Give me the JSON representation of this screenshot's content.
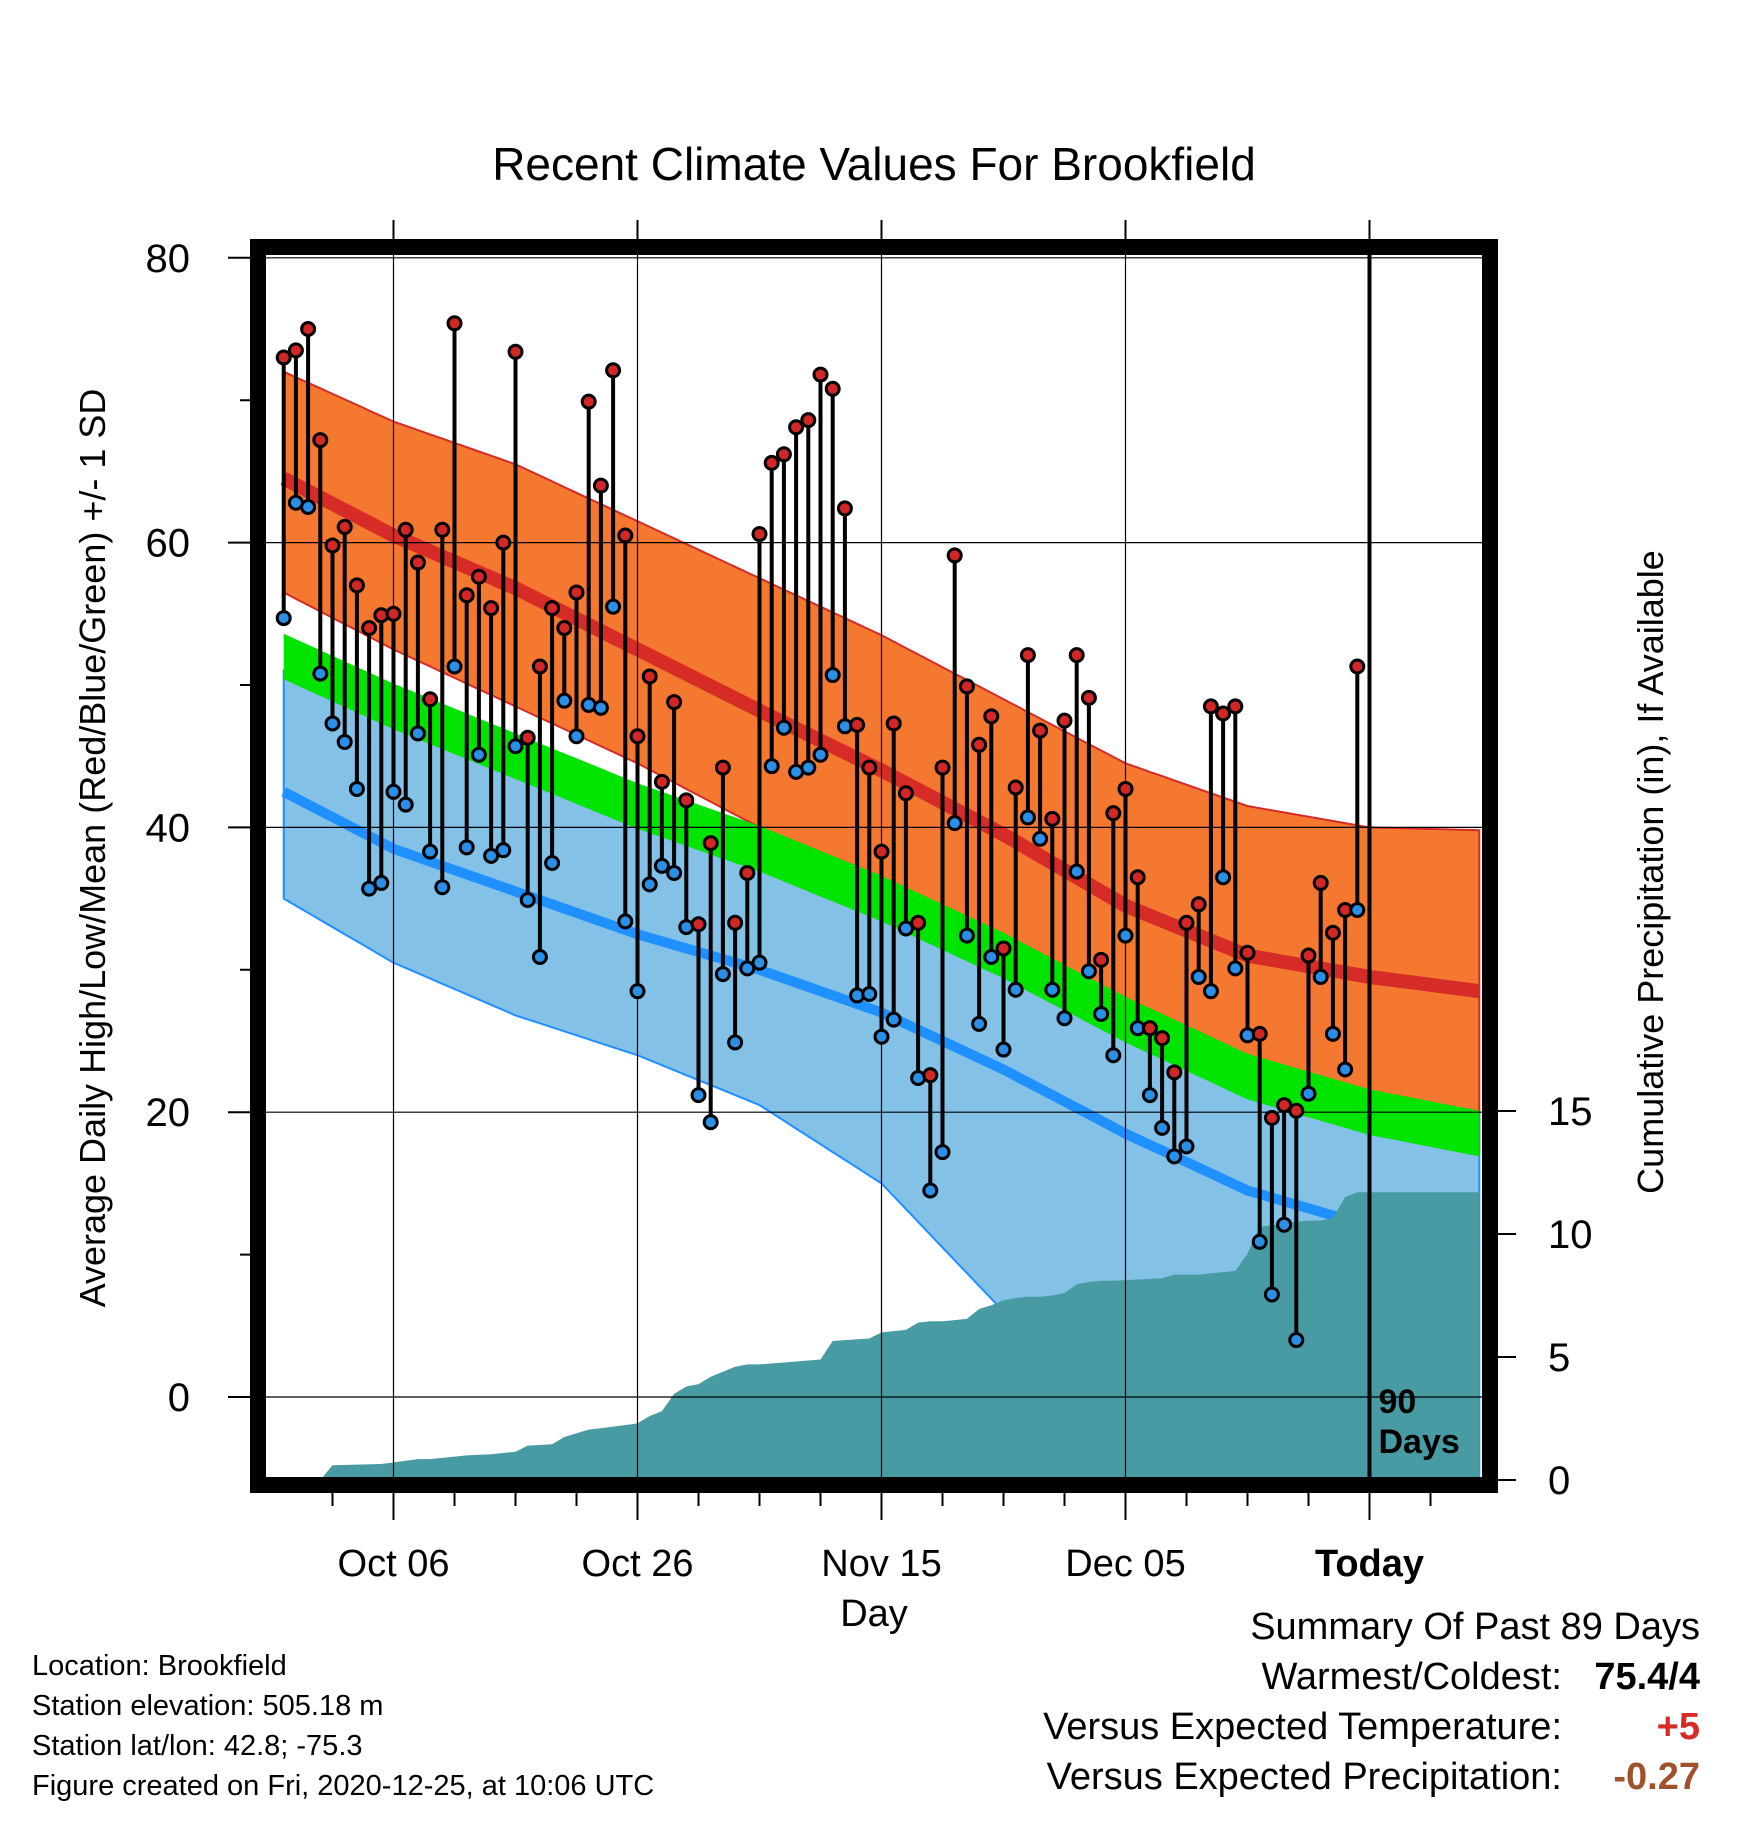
{
  "chart_data": {
    "type": "line",
    "title": "Recent Climate Values For Brookfield",
    "xlabel": "Day",
    "ylabel": "Average Daily High/Low/Mean (Red/Blue/Green) +/- 1 SD",
    "ylabel_right": "Cumulative Precipitation (in), If Available",
    "ylim": [
      -6,
      80
    ],
    "y2lim": [
      0,
      50
    ],
    "xlim_days": [
      -89,
      9
    ],
    "x_tick_labels": [
      "Oct 06",
      "Oct 26",
      "Nov 15",
      "Dec 05",
      "Today"
    ],
    "x_tick_days": [
      -80,
      -60,
      -40,
      -20,
      0
    ],
    "y_ticks": [
      0,
      20,
      40,
      60,
      80
    ],
    "y2_ticks": [
      0,
      5,
      10,
      15
    ],
    "today_label": "90 Days",
    "grid": true,
    "colors": {
      "high_band": "#f4782f",
      "high_line": "#d62b26",
      "low_band": "#84c1e6",
      "low_line": "#1e90ff",
      "mean_band": "#00e400",
      "overlap": "#9b1214",
      "precip": "#489aa3",
      "high_marker": "#d32626",
      "low_marker": "#2a8fe6"
    },
    "normal_days": [
      -89,
      -80,
      -70,
      -60,
      -50,
      -40,
      -30,
      -20,
      -10,
      0,
      9
    ],
    "normal_high_mean": [
      64.5,
      60.5,
      56.8,
      52.5,
      48.2,
      44.0,
      39.5,
      34.5,
      31.0,
      29.5,
      28.5
    ],
    "normal_high_upper": [
      72.0,
      68.5,
      65.5,
      61.5,
      57.5,
      53.5,
      49.0,
      44.5,
      41.5,
      40.0,
      39.8
    ],
    "normal_high_lower": [
      56.5,
      52.5,
      48.5,
      44.5,
      40.0,
      35.5,
      30.5,
      25.5,
      21.5,
      19.0,
      17.3
    ],
    "normal_mean": [
      52.0,
      48.5,
      45.0,
      41.5,
      38.5,
      35.0,
      31.0,
      26.5,
      22.5,
      20.0,
      18.5
    ],
    "normal_mean_band_width": 1.6,
    "normal_low_mean": [
      42.5,
      38.5,
      35.5,
      32.5,
      30.0,
      27.0,
      23.0,
      18.5,
      14.5,
      12.0,
      10.5
    ],
    "normal_low_upper": [
      51.0,
      47.0,
      43.5,
      40.0,
      38.0,
      35.5,
      31.5,
      27.5,
      24.0,
      21.5,
      20.0
    ],
    "normal_low_lower": [
      35.0,
      30.5,
      26.8,
      24.0,
      20.5,
      15.0,
      6.0,
      -2.5,
      -10.0,
      -16.0,
      -20.0
    ],
    "observed_days": [
      -89,
      -88,
      -87,
      -86,
      -85,
      -84,
      -83,
      -82,
      -81,
      -80,
      -79,
      -78,
      -77,
      -76,
      -75,
      -74,
      -73,
      -72,
      -71,
      -70,
      -69,
      -68,
      -67,
      -66,
      -65,
      -64,
      -63,
      -62,
      -61,
      -60,
      -59,
      -58,
      -57,
      -56,
      -55,
      -54,
      -53,
      -52,
      -51,
      -50,
      -49,
      -48,
      -47,
      -46,
      -45,
      -44,
      -43,
      -42,
      -41,
      -40,
      -39,
      -38,
      -37,
      -36,
      -35,
      -34,
      -33,
      -32,
      -31,
      -30,
      -29,
      -28,
      -27,
      -26,
      -25,
      -24,
      -23,
      -22,
      -21,
      -20,
      -19,
      -18,
      -17,
      -16,
      -15,
      -14,
      -13,
      -12,
      -11,
      -10,
      -9,
      -8,
      -7,
      -6,
      -5,
      -4,
      -3,
      -2,
      -1
    ],
    "observed_high": [
      73.0,
      73.5,
      75.0,
      67.2,
      59.8,
      61.1,
      57.0,
      54.0,
      54.9,
      55.0,
      60.9,
      58.6,
      49.0,
      60.9,
      75.4,
      56.3,
      57.6,
      55.4,
      60.0,
      73.4,
      46.3,
      51.3,
      55.4,
      54.0,
      56.5,
      69.9,
      64.0,
      72.1,
      60.5,
      46.4,
      50.6,
      43.2,
      48.8,
      41.9,
      33.2,
      38.9,
      44.2,
      33.3,
      36.8,
      60.6,
      65.6,
      66.2,
      68.1,
      68.6,
      71.8,
      70.8,
      62.4,
      47.2,
      44.2,
      38.3,
      47.3,
      42.4,
      33.3,
      22.6,
      44.2,
      59.1,
      49.9,
      45.8,
      47.8,
      31.5,
      42.8,
      52.1,
      46.8,
      40.6,
      47.5,
      52.1,
      49.1,
      30.7,
      41.0,
      42.7,
      36.5,
      25.9,
      25.2,
      22.8,
      33.3,
      34.6,
      48.5,
      48.0,
      48.5,
      31.2,
      25.5,
      19.6,
      20.5,
      20.1,
      31.0,
      36.1,
      32.6,
      34.2,
      51.3
    ],
    "observed_low": [
      54.7,
      62.8,
      62.5,
      50.8,
      47.3,
      46.0,
      42.7,
      35.7,
      36.1,
      42.5,
      41.6,
      46.6,
      38.3,
      35.8,
      51.3,
      38.6,
      45.1,
      38.0,
      38.4,
      45.7,
      34.9,
      30.9,
      37.5,
      48.9,
      46.4,
      48.6,
      48.4,
      55.5,
      33.4,
      28.5,
      36.0,
      37.3,
      36.8,
      33.0,
      21.2,
      19.3,
      29.7,
      24.9,
      30.1,
      30.5,
      44.3,
      47.0,
      43.9,
      44.2,
      45.1,
      50.7,
      47.1,
      28.2,
      28.3,
      25.3,
      26.5,
      32.9,
      22.4,
      14.5,
      17.2,
      40.3,
      32.4,
      26.2,
      30.9,
      24.4,
      28.6,
      40.7,
      39.2,
      28.6,
      26.6,
      36.9,
      29.9,
      26.9,
      24.0,
      32.4,
      25.9,
      21.2,
      18.9,
      16.9,
      17.6,
      29.5,
      28.5,
      36.5,
      30.1,
      25.4,
      10.9,
      7.2,
      12.1,
      4.0,
      21.3,
      29.5,
      25.5,
      23.0,
      34.2
    ],
    "precip_days": [
      -89,
      -86,
      -85,
      -81,
      -78,
      -77,
      -74,
      -72,
      -70,
      -69,
      -67,
      -66,
      -64,
      -63,
      -60,
      -59,
      -58,
      -57,
      -56,
      -55,
      -54,
      -53,
      -52,
      -51,
      -50,
      -45,
      -44,
      -41,
      -40,
      -38,
      -37,
      -36,
      -35,
      -34,
      -33,
      -32,
      -31,
      -30,
      -29,
      -28,
      -27,
      -26,
      -25,
      -24,
      -23,
      -22,
      -21,
      -19,
      -17,
      -16,
      -14,
      -13,
      -12,
      -11,
      -10,
      -9,
      -8,
      -7,
      -6,
      -5,
      -4,
      -3,
      -2,
      -1,
      0,
      9
    ],
    "precip_cum": [
      0,
      0,
      0.6,
      0.65,
      0.85,
      0.85,
      1.0,
      1.05,
      1.15,
      1.4,
      1.45,
      1.75,
      2.05,
      2.1,
      2.3,
      2.6,
      2.8,
      3.5,
      3.8,
      3.9,
      4.2,
      4.4,
      4.6,
      4.7,
      4.7,
      4.9,
      5.65,
      5.75,
      6.0,
      6.1,
      6.4,
      6.45,
      6.45,
      6.5,
      6.55,
      6.95,
      7.1,
      7.3,
      7.4,
      7.45,
      7.45,
      7.5,
      7.6,
      7.95,
      8.05,
      8.1,
      8.1,
      8.15,
      8.2,
      8.35,
      8.35,
      8.4,
      8.45,
      8.5,
      9.2,
      10.3,
      10.35,
      10.45,
      10.5,
      10.55,
      10.55,
      10.65,
      11.5,
      11.7,
      11.7,
      11.7
    ]
  },
  "info": {
    "location": "Location: Brookfield",
    "elevation": "Station elevation: 505.18 m",
    "latlon": "Station lat/lon: 42.8; -75.3",
    "created": "Figure created on Fri, 2020-12-25, at 10:06 UTC"
  },
  "summary": {
    "title": "Summary Of Past 89 Days",
    "warm_cold_label": "Warmest/Coldest:",
    "warm_value": "75.4",
    "cold_value": "4",
    "temp_label": "Versus Expected Temperature:",
    "temp_value": "+5",
    "temp_color": "#d62b26",
    "precip_label": "Versus Expected Precipitation:",
    "precip_value": "-0.27",
    "precip_color": "#a0522d"
  }
}
